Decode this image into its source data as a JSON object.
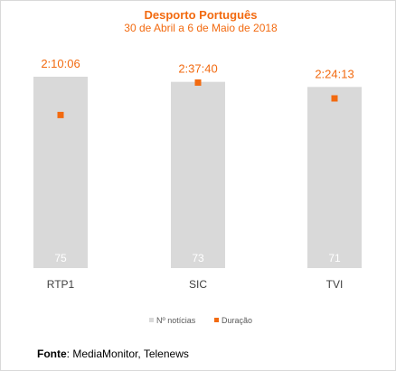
{
  "chart_data": {
    "type": "bar",
    "title": "Desporto Português",
    "subtitle": "30 de Abril a 6 de Maio de 2018",
    "categories": [
      "RTP1",
      "SIC",
      "TVI"
    ],
    "series": [
      {
        "name": "Nº notícias",
        "values": [
          75,
          73,
          71
        ],
        "color": "#d9d9d9"
      },
      {
        "name": "Duração",
        "values": [
          "2:10:06",
          "2:37:40",
          "2:24:13"
        ],
        "color": "#f26a10",
        "marker": "square"
      }
    ],
    "ylim": [
      0,
      75
    ],
    "grid": false,
    "legend_position": "bottom"
  },
  "footer": {
    "source_label": "Fonte",
    "source_text": ": MediaMonitor, Telenews"
  }
}
